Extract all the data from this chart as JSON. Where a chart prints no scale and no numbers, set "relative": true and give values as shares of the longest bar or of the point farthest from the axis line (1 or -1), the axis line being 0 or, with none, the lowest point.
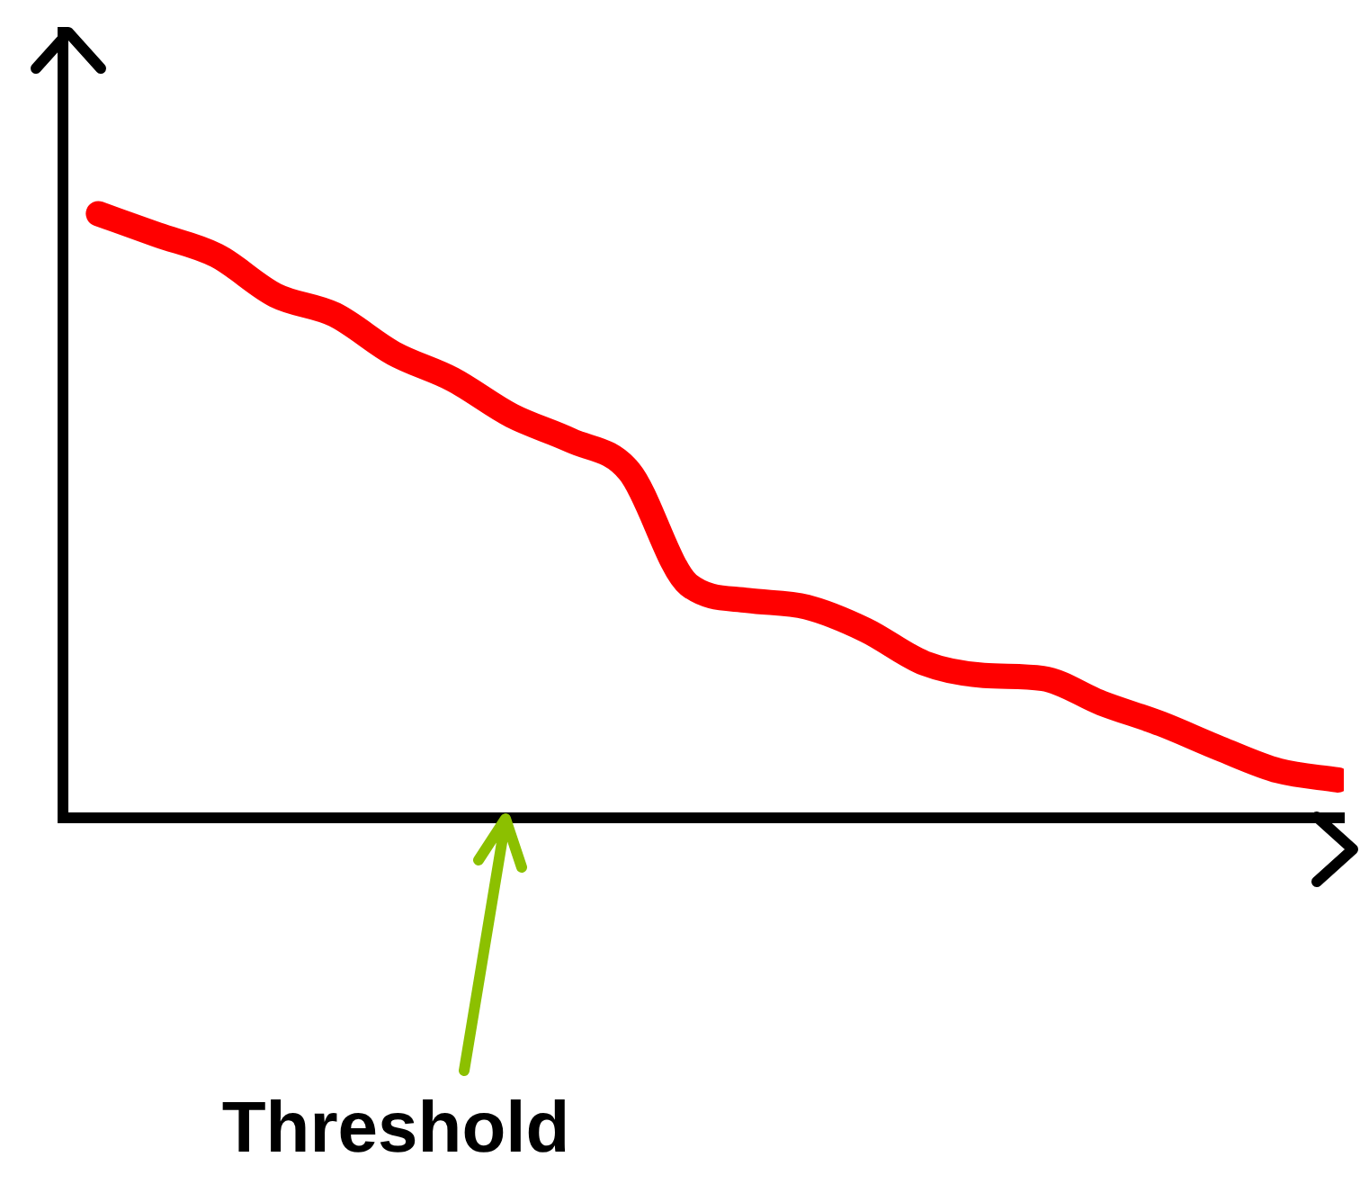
{
  "chart_data": {
    "type": "line",
    "relative": true,
    "categories": [
      null,
      null,
      null,
      null,
      null,
      null,
      null,
      null,
      null,
      null,
      null,
      null,
      null,
      null,
      null,
      null,
      null,
      null,
      null,
      null,
      null,
      null
    ],
    "series": [
      {
        "color": "#ff0000",
        "values": [
          1,
          0.965,
          0.931,
          0.865,
          0.833,
          0.769,
          0.726,
          0.666,
          0.625,
          0.573,
          0.386,
          0.36,
          0.349,
          0.311,
          0.256,
          0.236,
          0.231,
          0.19,
          0.156,
          0.115,
          0.078,
          0.063
        ]
      }
    ],
    "annotations": [
      "Threshold"
    ],
    "grid": false,
    "legend": false,
    "marker": "none",
    "line_style": "solid"
  }
}
